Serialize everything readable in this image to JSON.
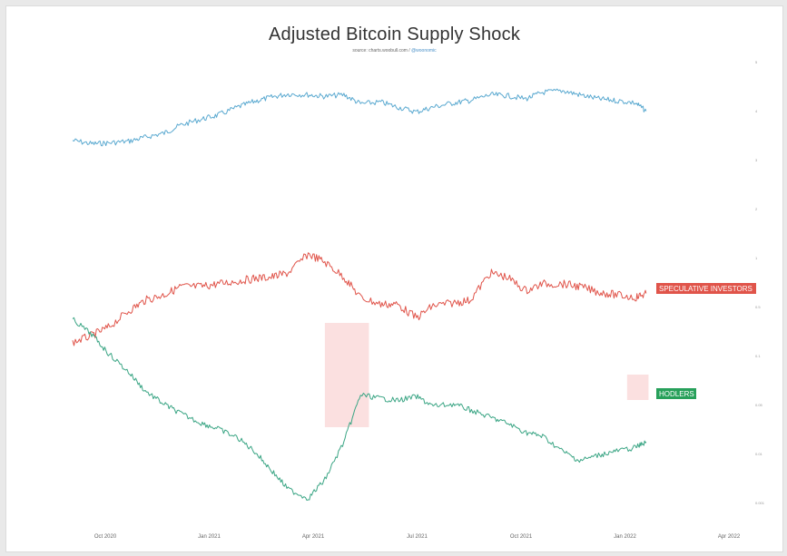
{
  "chart_data": {
    "type": "line",
    "title": "Adjusted Bitcoin Supply Shock",
    "subtitle_source": "source: charts.woobull.com /",
    "subtitle_handle": "@woonomic",
    "xlabel": "",
    "ylabel": "",
    "x_ticks": [
      "Oct 2020",
      "Jan 2021",
      "Apr 2021",
      "Jul 2021",
      "Oct 2021",
      "Jan 2022",
      "Apr 2022"
    ],
    "x_range": [
      "2020-09-15",
      "2022-04-01"
    ],
    "grid": false,
    "series": [
      {
        "name": "",
        "color": "#5aa9d0",
        "x": [
          "2020-09-15",
          "2020-10-01",
          "2020-10-15",
          "2020-11-01",
          "2020-11-15",
          "2020-12-01",
          "2020-12-15",
          "2021-01-01",
          "2021-01-15",
          "2021-02-01",
          "2021-02-15",
          "2021-03-01",
          "2021-03-15",
          "2021-04-01",
          "2021-04-15",
          "2021-05-01",
          "2021-05-15",
          "2021-06-01",
          "2021-06-15",
          "2021-07-01",
          "2021-07-15",
          "2021-08-01",
          "2021-08-15",
          "2021-09-01",
          "2021-09-15",
          "2021-10-01",
          "2021-10-15",
          "2021-11-01",
          "2021-11-15",
          "2021-12-01",
          "2021-12-15",
          "2022-01-01",
          "2022-01-10"
        ],
        "values": [
          0.61,
          0.65,
          0.64,
          0.62,
          0.57,
          0.52,
          0.42,
          0.35,
          0.3,
          0.2,
          0.13,
          0.08,
          0.04,
          0.05,
          0.07,
          0.05,
          0.16,
          0.14,
          0.2,
          0.26,
          0.2,
          0.15,
          0.12,
          0.05,
          0.06,
          0.1,
          0.02,
          0.0,
          0.05,
          0.1,
          0.12,
          0.15,
          0.25
        ]
      },
      {
        "name": "SPECULATIVE INVESTORS",
        "color": "#e0544a",
        "x": [
          "2020-09-15",
          "2020-10-01",
          "2020-10-15",
          "2020-11-01",
          "2020-11-15",
          "2020-12-01",
          "2020-12-15",
          "2021-01-01",
          "2021-01-15",
          "2021-02-01",
          "2021-02-15",
          "2021-03-01",
          "2021-03-15",
          "2021-04-01",
          "2021-04-15",
          "2021-05-01",
          "2021-05-15",
          "2021-06-01",
          "2021-06-15",
          "2021-07-01",
          "2021-07-15",
          "2021-08-01",
          "2021-08-15",
          "2021-09-01",
          "2021-09-15",
          "2021-10-01",
          "2021-10-15",
          "2021-11-01",
          "2021-11-15",
          "2021-12-01",
          "2021-12-15",
          "2022-01-01",
          "2022-01-10"
        ],
        "values": [
          0.93,
          0.88,
          0.82,
          0.7,
          0.62,
          0.58,
          0.52,
          0.52,
          0.5,
          0.48,
          0.46,
          0.45,
          0.42,
          0.28,
          0.34,
          0.45,
          0.6,
          0.65,
          0.65,
          0.75,
          0.66,
          0.64,
          0.62,
          0.42,
          0.45,
          0.55,
          0.5,
          0.5,
          0.52,
          0.56,
          0.58,
          0.6,
          0.57
        ]
      },
      {
        "name": "HODLERS",
        "color": "#3aa584",
        "x": [
          "2020-09-15",
          "2020-10-01",
          "2020-10-15",
          "2020-11-01",
          "2020-11-15",
          "2020-12-01",
          "2020-12-15",
          "2021-01-01",
          "2021-01-15",
          "2021-02-01",
          "2021-02-15",
          "2021-03-01",
          "2021-03-15",
          "2021-04-01",
          "2021-04-15",
          "2021-05-01",
          "2021-05-15",
          "2021-06-01",
          "2021-06-15",
          "2021-07-01",
          "2021-07-15",
          "2021-08-01",
          "2021-08-15",
          "2021-09-01",
          "2021-09-15",
          "2021-10-01",
          "2021-10-15",
          "2021-11-01",
          "2021-11-15",
          "2021-12-01",
          "2021-12-15",
          "2022-01-01",
          "2022-01-10"
        ],
        "values": [
          0.0,
          0.08,
          0.18,
          0.28,
          0.38,
          0.45,
          0.5,
          0.55,
          0.58,
          0.63,
          0.7,
          0.8,
          0.9,
          0.95,
          0.85,
          0.65,
          0.4,
          0.42,
          0.43,
          0.41,
          0.46,
          0.45,
          0.48,
          0.52,
          0.55,
          0.6,
          0.62,
          0.7,
          0.75,
          0.72,
          0.7,
          0.68,
          0.65
        ]
      }
    ],
    "highlight_ranges": [
      {
        "series": "HODLERS",
        "from": "2021-04-15",
        "to": "2021-05-22",
        "color": "#fbe0e0"
      },
      {
        "series": "HODLERS",
        "from": "2021-12-25",
        "to": "2022-01-12",
        "color": "#fbe0e0"
      }
    ],
    "labels": [
      {
        "text": "SPECULATIVE INVESTORS",
        "color": "#e0544a"
      },
      {
        "text": "HODLERS",
        "color": "#27a05a"
      }
    ],
    "right_axis_ticks": [
      "5",
      "4",
      "3",
      "2",
      "1",
      "0.5",
      "0.1",
      "0.05",
      "0.01",
      "0.001"
    ]
  }
}
